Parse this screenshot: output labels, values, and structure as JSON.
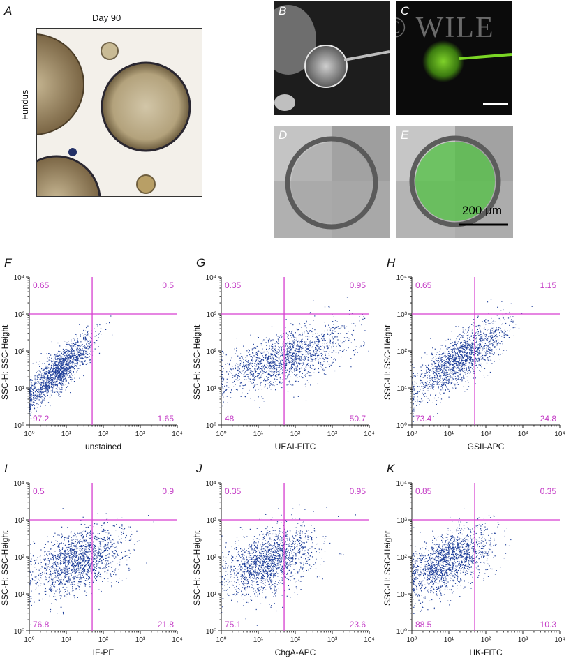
{
  "panels": {
    "A": {
      "letter": "A",
      "title": "Day 90",
      "side_label": "Fundus"
    },
    "B": {
      "letter": "B"
    },
    "C": {
      "letter": "C",
      "watermark": "© WILE"
    },
    "D": {
      "letter": "D"
    },
    "E": {
      "letter": "E",
      "scale_text": "200 μm"
    }
  },
  "flow_plots": [
    {
      "letter": "F",
      "xlabel": "unstained",
      "ylabel": "SSC-H: SSC-Height",
      "q_ul": "0.65",
      "q_ur": "0.5",
      "q_ll": "97.2",
      "q_lr": "1.65",
      "cx": 0.8,
      "cy": 1.5,
      "sx": 0.45,
      "sy": 0.45,
      "rho": 0.82
    },
    {
      "letter": "G",
      "xlabel": "UEAI-FITC",
      "ylabel": "SSC-H: SSC-Height",
      "q_ul": "0.35",
      "q_ur": "0.95",
      "q_ll": "48",
      "q_lr": "50.7",
      "cx": 1.7,
      "cy": 1.8,
      "sx": 0.85,
      "sy": 0.45,
      "rho": 0.6
    },
    {
      "letter": "H",
      "xlabel": "GSII-APC",
      "ylabel": "SSC-H: SSC-Height",
      "q_ul": "0.65",
      "q_ur": "1.15",
      "q_ll": "73.4",
      "q_lr": "24.8",
      "cx": 1.3,
      "cy": 1.8,
      "sx": 0.6,
      "sy": 0.5,
      "rho": 0.75
    },
    {
      "letter": "I",
      "xlabel": "IF-PE",
      "ylabel": "SSC-H: SSC-Height",
      "q_ul": "0.5",
      "q_ur": "0.9",
      "q_ll": "76.8",
      "q_lr": "21.8",
      "cx": 1.3,
      "cy": 1.9,
      "sx": 0.6,
      "sy": 0.45,
      "rho": 0.4
    },
    {
      "letter": "J",
      "xlabel": "ChgA-APC",
      "ylabel": "SSC-H: SSC-Height",
      "q_ul": "0.35",
      "q_ur": "0.95",
      "q_ll": "75.1",
      "q_lr": "23.6",
      "cx": 1.3,
      "cy": 1.9,
      "sx": 0.6,
      "sy": 0.45,
      "rho": 0.4
    },
    {
      "letter": "K",
      "xlabel": "HK-FITC",
      "ylabel": "SSC-H: SSC-Height",
      "q_ul": "0.85",
      "q_ur": "0.35",
      "q_ll": "88.5",
      "q_lr": "10.3",
      "cx": 1.0,
      "cy": 1.9,
      "sx": 0.55,
      "sy": 0.45,
      "rho": 0.5
    }
  ],
  "chart_data": {
    "type": "scatter",
    "xlim": [
      1,
      10000
    ],
    "ylim": [
      1,
      10000
    ],
    "log_scale": true,
    "tick_labels": [
      "10⁰",
      "10¹",
      "10²",
      "10³",
      "10⁴"
    ],
    "quadrant_gate": {
      "x": 50,
      "y": 1000
    },
    "colors": {
      "points": "#1f3f9a",
      "gate": "#d63fd0",
      "quadrant_text": "#c43cc6"
    }
  }
}
